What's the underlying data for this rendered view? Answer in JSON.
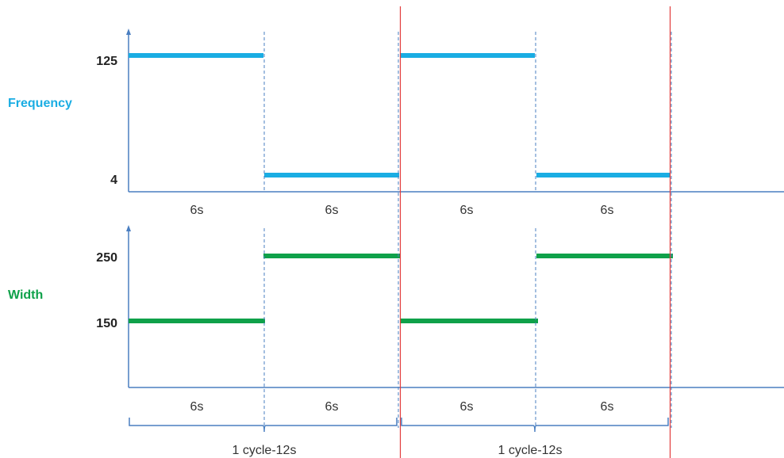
{
  "colors": {
    "frequency": "#1AADE3",
    "width": "#0FA14A",
    "axis": "#4A7FC1",
    "divider": "#4A7FC1",
    "cycle_marker": "#E23B3B"
  },
  "frequency": {
    "label": "Frequency",
    "high_label": "125",
    "low_label": "4",
    "segment_labels": [
      "6s",
      "6s",
      "6s",
      "6s"
    ]
  },
  "width": {
    "label": "Width",
    "high_label": "250",
    "low_label": "150",
    "segment_labels": [
      "6s",
      "6s",
      "6s",
      "6s"
    ]
  },
  "cycles": {
    "labels": [
      "1 cycle-12s",
      "1 cycle-12s"
    ]
  }
}
